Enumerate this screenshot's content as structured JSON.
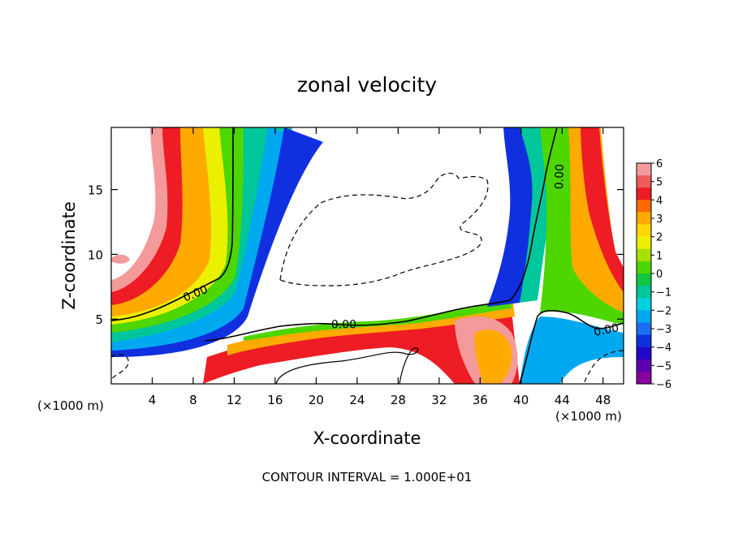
{
  "chart_data": {
    "type": "heatmap",
    "title": "zonal velocity",
    "xlabel": "X-coordinate",
    "ylabel": "Z-coordinate",
    "xlim": [
      0,
      50
    ],
    "ylim": [
      0,
      19.8
    ],
    "x_ticks": [
      "4",
      "8",
      "12",
      "16",
      "20",
      "24",
      "28",
      "32",
      "36",
      "40",
      "44",
      "48"
    ],
    "x_tick_values": [
      4,
      8,
      12,
      16,
      20,
      24,
      28,
      32,
      36,
      40,
      44,
      48
    ],
    "y_ticks": [
      "5",
      "10",
      "15"
    ],
    "y_tick_values": [
      5,
      10,
      15
    ],
    "x_unit_left": "(×1000 m)",
    "x_unit_right": "(×1000 m)",
    "footer": "CONTOUR INTERVAL = 1.000E+01",
    "contour_labels": [
      {
        "text": "0.00",
        "x": 8.2,
        "z": 7.0,
        "angle": -22
      },
      {
        "text": "0.00",
        "x": 22.7,
        "z": 4.6,
        "angle": 0
      },
      {
        "text": "0.00",
        "x": 43.7,
        "z": 16.0,
        "angle": -88
      },
      {
        "text": "0.00",
        "x": 48.3,
        "z": 4.2,
        "angle": -12
      }
    ],
    "colorbar": {
      "labels": [
        "6",
        "5",
        "4",
        "3",
        "2",
        "1",
        "0",
        "−1",
        "−2",
        "−3",
        "−4",
        "−5",
        "−6"
      ],
      "levels": [
        6,
        5,
        4,
        3,
        2,
        1,
        0,
        -1,
        -2,
        -3,
        -4,
        -5,
        -6
      ],
      "colors": [
        "#f49a9a",
        "#ef5b5b",
        "#ee1c24",
        "#ff6a00",
        "#ffaa00",
        "#ffd800",
        "#eaf000",
        "#a8e000",
        "#4dd600",
        "#11c640",
        "#00c69c",
        "#00d0e0",
        "#00a8f0",
        "#1a6ef0",
        "#1030e0",
        "#2008c8",
        "#5a00b0",
        "#8a00a0"
      ]
    }
  }
}
